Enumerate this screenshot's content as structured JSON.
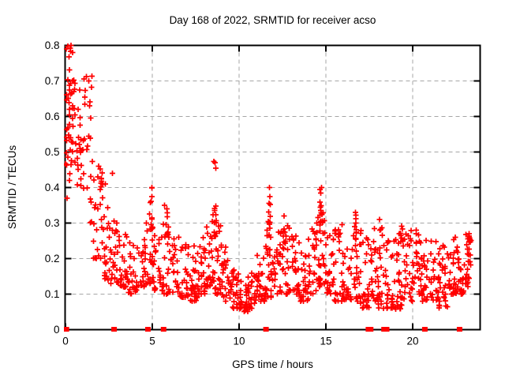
{
  "page": {
    "background_color": "#ffffff"
  },
  "chart_data": {
    "type": "scatter",
    "title": "Day 168 of 2022, SRMTID for receiver acso",
    "xlabel": "GPS time / hours",
    "ylabel": "SRMTID / TECUs",
    "xlim": [
      0,
      24
    ],
    "ylim": [
      0,
      0.8
    ],
    "xticks": [
      0,
      5,
      10,
      15,
      20
    ],
    "yticks": [
      0,
      0.1,
      0.2,
      0.3,
      0.4,
      0.5,
      0.6,
      0.7,
      0.8
    ],
    "ytick_labels": [
      "0",
      "0.1",
      "0.2",
      "0.3",
      "0.4",
      "0.5",
      "0.6",
      "0.7",
      "0.8"
    ],
    "xtick_labels": [
      "0",
      "5",
      "10",
      "15",
      "20"
    ],
    "grid": true,
    "grid_style": "dashed",
    "legend": "none",
    "marker": "plus",
    "marker_color": "#ff0000",
    "grid_color": "#a6a6a6",
    "border_color": "#000000",
    "seed": 168,
    "outlier_points": [
      [
        0.1,
        0.37
      ],
      [
        0.32,
        0.8
      ],
      [
        0.4,
        0.78
      ],
      [
        1.35,
        0.7
      ],
      [
        1.9,
        0.46
      ],
      [
        2.3,
        0.41
      ],
      [
        2.7,
        0.44
      ],
      [
        8.62,
        0.47
      ],
      [
        8.66,
        0.455
      ],
      [
        11.75,
        0.4
      ],
      [
        11.78,
        0.375
      ],
      [
        14.75,
        0.4
      ],
      [
        14.7,
        0.385
      ],
      [
        16.7,
        0.33
      ],
      [
        5.7,
        0.35
      ],
      [
        4.97,
        0.4
      ],
      [
        12.6,
        0.32
      ],
      [
        18.08,
        0.31
      ],
      [
        23.25,
        0.27
      ]
    ],
    "zero_value_times": [
      0.05,
      2.8,
      4.75,
      5.65,
      11.55,
      17.45,
      17.58,
      18.35,
      18.5,
      20.7,
      22.7
    ],
    "bands": [
      [
        0.0,
        0.3,
        0.44,
        0.8,
        22,
        1.0
      ],
      [
        0.2,
        0.6,
        0.42,
        0.76,
        20,
        1.0
      ],
      [
        0.5,
        1.0,
        0.4,
        0.7,
        20,
        1.1
      ],
      [
        1.0,
        1.6,
        0.3,
        0.72,
        26,
        1.1
      ],
      [
        1.6,
        2.1,
        0.2,
        0.44,
        20,
        1.3
      ],
      [
        2.1,
        2.6,
        0.14,
        0.35,
        22,
        1.6
      ],
      [
        2.6,
        3.1,
        0.13,
        0.31,
        24,
        1.7
      ],
      [
        3.1,
        3.6,
        0.12,
        0.27,
        24,
        1.7
      ],
      [
        3.6,
        4.1,
        0.1,
        0.26,
        24,
        1.7
      ],
      [
        4.1,
        4.6,
        0.12,
        0.27,
        22,
        1.7
      ],
      [
        4.6,
        5.1,
        0.13,
        0.34,
        24,
        1.8
      ],
      [
        5.1,
        5.6,
        0.11,
        0.28,
        22,
        1.7
      ],
      [
        5.6,
        6.1,
        0.1,
        0.3,
        22,
        1.7
      ],
      [
        6.1,
        6.6,
        0.1,
        0.28,
        20,
        1.7
      ],
      [
        6.6,
        7.1,
        0.09,
        0.25,
        24,
        1.7
      ],
      [
        7.1,
        7.6,
        0.08,
        0.24,
        26,
        1.7
      ],
      [
        7.6,
        8.1,
        0.1,
        0.26,
        26,
        1.7
      ],
      [
        8.1,
        8.55,
        0.12,
        0.34,
        26,
        1.6
      ],
      [
        8.55,
        9.0,
        0.1,
        0.3,
        22,
        1.8
      ],
      [
        9.0,
        9.5,
        0.08,
        0.24,
        24,
        1.8
      ],
      [
        9.5,
        10.0,
        0.06,
        0.17,
        26,
        1.5
      ],
      [
        10.0,
        10.5,
        0.05,
        0.15,
        26,
        1.5
      ],
      [
        10.5,
        11.0,
        0.06,
        0.16,
        26,
        1.5
      ],
      [
        11.0,
        11.5,
        0.08,
        0.22,
        26,
        1.6
      ],
      [
        11.5,
        12.0,
        0.09,
        0.28,
        26,
        1.8
      ],
      [
        12.0,
        12.5,
        0.1,
        0.28,
        24,
        1.8
      ],
      [
        12.5,
        13.0,
        0.1,
        0.3,
        22,
        1.8
      ],
      [
        13.0,
        13.5,
        0.1,
        0.28,
        26,
        1.8
      ],
      [
        13.5,
        14.0,
        0.08,
        0.22,
        24,
        1.6
      ],
      [
        14.0,
        14.5,
        0.1,
        0.3,
        26,
        1.8
      ],
      [
        14.5,
        15.0,
        0.12,
        0.36,
        26,
        1.8
      ],
      [
        15.0,
        15.5,
        0.1,
        0.29,
        26,
        1.8
      ],
      [
        15.5,
        16.0,
        0.08,
        0.3,
        26,
        1.8
      ],
      [
        16.0,
        16.5,
        0.08,
        0.24,
        24,
        1.7
      ],
      [
        16.5,
        17.0,
        0.08,
        0.31,
        26,
        1.8
      ],
      [
        17.0,
        17.5,
        0.06,
        0.28,
        26,
        1.8
      ],
      [
        17.5,
        18.0,
        0.08,
        0.29,
        26,
        1.8
      ],
      [
        18.0,
        18.5,
        0.06,
        0.31,
        26,
        1.8
      ],
      [
        18.5,
        19.0,
        0.06,
        0.27,
        26,
        1.8
      ],
      [
        19.0,
        19.5,
        0.05,
        0.27,
        26,
        1.8
      ],
      [
        19.5,
        20.0,
        0.08,
        0.28,
        26,
        1.8
      ],
      [
        20.0,
        20.5,
        0.1,
        0.28,
        26,
        1.8
      ],
      [
        20.5,
        21.0,
        0.08,
        0.26,
        24,
        1.8
      ],
      [
        21.0,
        21.5,
        0.08,
        0.26,
        26,
        1.8
      ],
      [
        21.5,
        22.0,
        0.06,
        0.25,
        26,
        1.8
      ],
      [
        22.0,
        22.5,
        0.1,
        0.26,
        28,
        1.8
      ],
      [
        22.5,
        23.0,
        0.1,
        0.24,
        26,
        1.8
      ],
      [
        23.0,
        23.4,
        0.12,
        0.27,
        20,
        1.3
      ]
    ],
    "spikes": [
      [
        0.35,
        0.1,
        0.5,
        0.8,
        8
      ],
      [
        2.05,
        0.1,
        0.33,
        0.47,
        8
      ],
      [
        4.95,
        0.07,
        0.25,
        0.4,
        10
      ],
      [
        5.9,
        0.08,
        0.26,
        0.35,
        8
      ],
      [
        8.62,
        0.08,
        0.25,
        0.475,
        14
      ],
      [
        11.75,
        0.07,
        0.22,
        0.4,
        12
      ],
      [
        12.6,
        0.07,
        0.24,
        0.32,
        6
      ],
      [
        14.75,
        0.1,
        0.22,
        0.4,
        14
      ],
      [
        16.7,
        0.08,
        0.24,
        0.33,
        8
      ],
      [
        19.35,
        0.08,
        0.22,
        0.3,
        6
      ],
      [
        23.25,
        0.1,
        0.18,
        0.27,
        8
      ]
    ]
  }
}
